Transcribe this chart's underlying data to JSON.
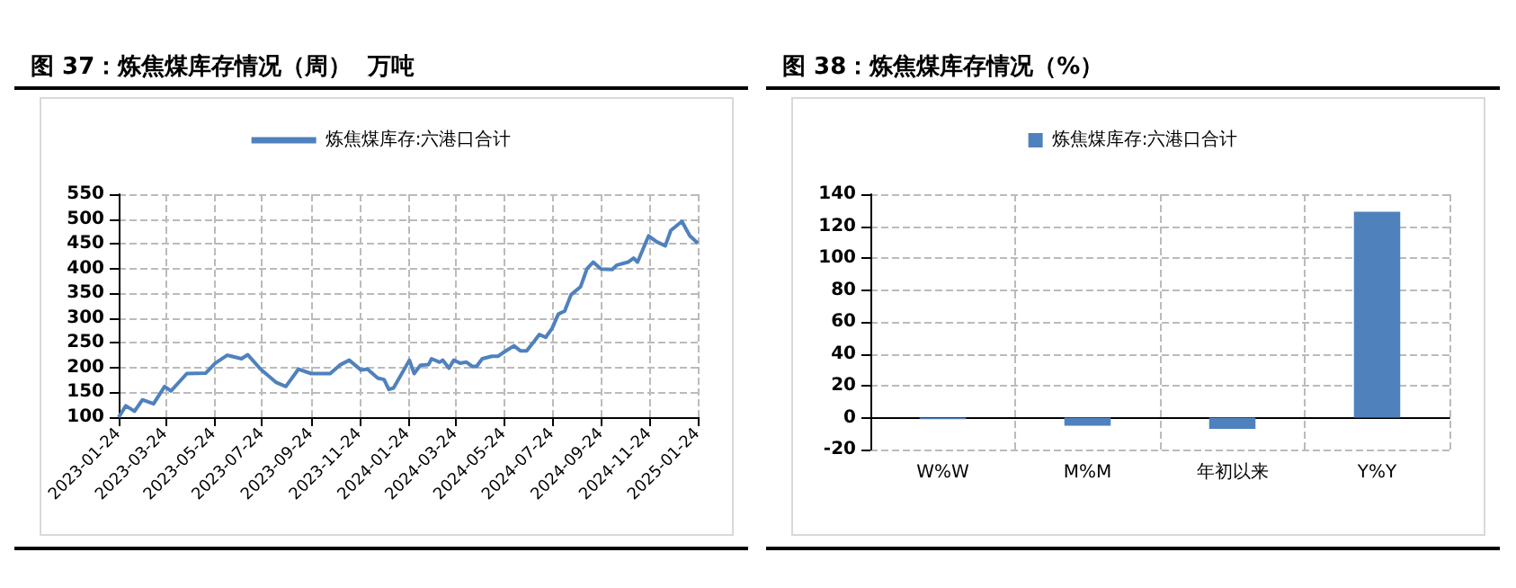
{
  "chart_data": [
    {
      "type": "line",
      "title": "图 37：炼焦煤库存情况（周）  万吨",
      "legend": "top",
      "grid": true,
      "line_style": "solid",
      "marker": "none",
      "xlim": [
        "2023-01-24",
        "2025-01-24"
      ],
      "xticks": [
        "2023-01-24",
        "2023-03-24",
        "2023-05-24",
        "2023-07-24",
        "2023-09-24",
        "2023-11-24",
        "2024-01-24",
        "2024-03-24",
        "2024-05-24",
        "2024-07-24",
        "2024-09-24",
        "2024-11-24",
        "2025-01-24"
      ],
      "ylim": [
        100,
        550
      ],
      "yticks": [
        100,
        150,
        200,
        250,
        300,
        350,
        400,
        450,
        500,
        550
      ],
      "x": [
        "2023-01-24",
        "2023-02-02",
        "2023-02-13",
        "2023-02-23",
        "2023-03-09",
        "2023-03-23",
        "2023-03-31",
        "2023-04-20",
        "2023-05-14",
        "2023-05-26",
        "2023-06-10",
        "2023-06-28",
        "2023-07-06",
        "2023-07-22",
        "2023-08-11",
        "2023-08-23",
        "2023-09-08",
        "2023-09-24",
        "2023-10-18",
        "2023-10-30",
        "2023-11-11",
        "2023-11-26",
        "2023-12-04",
        "2023-12-17",
        "2023-12-25",
        "2023-12-31",
        "2024-01-06",
        "2024-01-26",
        "2024-02-01",
        "2024-02-09",
        "2024-02-19",
        "2024-02-23",
        "2024-03-04",
        "2024-03-08",
        "2024-03-16",
        "2024-03-22",
        "2024-03-30",
        "2024-04-07",
        "2024-04-15",
        "2024-04-20",
        "2024-04-27",
        "2024-05-09",
        "2024-05-17",
        "2024-05-25",
        "2024-06-06",
        "2024-06-14",
        "2024-06-22",
        "2024-06-30",
        "2024-07-08",
        "2024-07-16",
        "2024-07-24",
        "2024-08-01",
        "2024-08-09",
        "2024-08-17",
        "2024-08-29",
        "2024-09-06",
        "2024-09-14",
        "2024-09-24",
        "2024-10-08",
        "2024-10-14",
        "2024-10-28",
        "2024-11-04",
        "2024-11-09",
        "2024-11-23",
        "2024-12-03",
        "2024-12-14",
        "2024-12-21",
        "2025-01-04",
        "2025-01-14",
        "2025-01-24"
      ],
      "series": [
        {
          "name": "炼焦煤库存:六港口合计",
          "color": "#4f81bd",
          "values": [
            100,
            123,
            112,
            135,
            127,
            162,
            153,
            188,
            189,
            209,
            225,
            218,
            226,
            197,
            170,
            162,
            197,
            188,
            188,
            205,
            215,
            195,
            197,
            179,
            176,
            156,
            159,
            215,
            188,
            205,
            206,
            218,
            211,
            215,
            199,
            215,
            209,
            211,
            202,
            203,
            218,
            223,
            223,
            232,
            244,
            234,
            234,
            250,
            267,
            261,
            279,
            308,
            314,
            347,
            363,
            399,
            413,
            399,
            398,
            407,
            413,
            421,
            413,
            466,
            454,
            446,
            477,
            495,
            466,
            451
          ]
        }
      ]
    },
    {
      "type": "bar",
      "title": "图 38：炼焦煤库存情况（%）",
      "legend": "top",
      "grid": true,
      "categories": [
        "W%W",
        "M%M",
        "年初以来",
        "Y%Y"
      ],
      "ylim": [
        -20,
        140
      ],
      "yticks": [
        -20,
        0,
        20,
        40,
        60,
        80,
        100,
        120,
        140
      ],
      "series": [
        {
          "name": "炼焦煤库存:六港口合计",
          "color": "#4f81bd",
          "values": [
            -1,
            -5,
            -7,
            129
          ]
        }
      ]
    }
  ]
}
